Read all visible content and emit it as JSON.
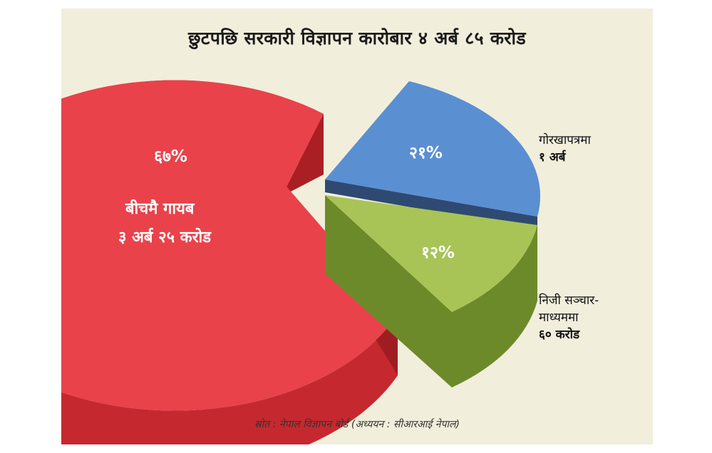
{
  "chart_data": {
    "type": "pie",
    "title": "छुटपछि सरकारी विज्ञापन कारोबार ४ अर्ब ८५ करोड",
    "slices": [
      {
        "label": "बीचमै गायब",
        "amount": "३ अर्ब २५ करोड",
        "percent_label": "६७%",
        "value": 67,
        "color": "#e8424a",
        "side_color": "#c92d33"
      },
      {
        "label": "गोरखापत्रमा",
        "amount": "१ अर्ब",
        "percent_label": "२१%",
        "value": 21,
        "color": "#5b8fd3",
        "side_color": "#2d4f7c"
      },
      {
        "label": "निजी सञ्चार-",
        "label2": "माध्यममा",
        "amount": "६० करोड",
        "percent_label": "१२%",
        "value": 12,
        "color": "#a9c457",
        "side_color": "#6f8a2b"
      }
    ],
    "source": "स्रोत : नेपाल विज्ञापन बोर्ड (अध्ययन : सीआरआई नेपाल)"
  }
}
